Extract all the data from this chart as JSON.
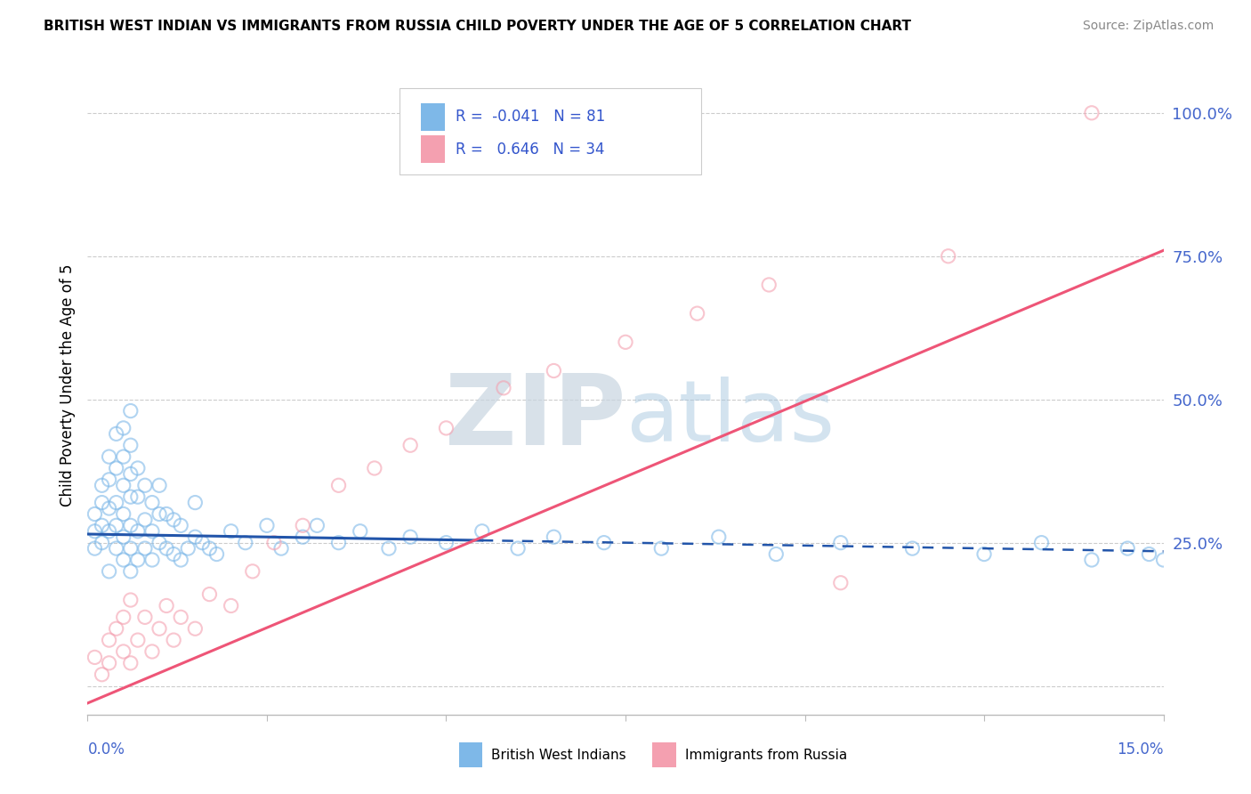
{
  "title": "BRITISH WEST INDIAN VS IMMIGRANTS FROM RUSSIA CHILD POVERTY UNDER THE AGE OF 5 CORRELATION CHART",
  "source": "Source: ZipAtlas.com",
  "ylabel": "Child Poverty Under the Age of 5",
  "x_lim": [
    0.0,
    0.15
  ],
  "y_lim": [
    -0.05,
    1.1
  ],
  "blue_R": -0.041,
  "blue_N": 81,
  "pink_R": 0.646,
  "pink_N": 34,
  "blue_color": "#7EB8E8",
  "pink_color": "#F4A0B0",
  "blue_trend_color": "#2255AA",
  "pink_trend_color": "#EE5577",
  "watermark_color": "#C8D8E8",
  "legend_label_blue": "British West Indians",
  "legend_label_pink": "Immigrants from Russia",
  "blue_x": [
    0.001,
    0.001,
    0.001,
    0.002,
    0.002,
    0.002,
    0.002,
    0.003,
    0.003,
    0.003,
    0.003,
    0.003,
    0.004,
    0.004,
    0.004,
    0.004,
    0.004,
    0.005,
    0.005,
    0.005,
    0.005,
    0.005,
    0.005,
    0.006,
    0.006,
    0.006,
    0.006,
    0.006,
    0.006,
    0.006,
    0.007,
    0.007,
    0.007,
    0.007,
    0.008,
    0.008,
    0.008,
    0.009,
    0.009,
    0.009,
    0.01,
    0.01,
    0.01,
    0.011,
    0.011,
    0.012,
    0.012,
    0.013,
    0.013,
    0.014,
    0.015,
    0.015,
    0.016,
    0.017,
    0.018,
    0.02,
    0.022,
    0.025,
    0.027,
    0.03,
    0.032,
    0.035,
    0.038,
    0.042,
    0.045,
    0.05,
    0.055,
    0.06,
    0.065,
    0.072,
    0.08,
    0.088,
    0.096,
    0.105,
    0.115,
    0.125,
    0.133,
    0.14,
    0.145,
    0.148,
    0.15
  ],
  "blue_y": [
    0.24,
    0.27,
    0.3,
    0.25,
    0.28,
    0.32,
    0.35,
    0.2,
    0.27,
    0.31,
    0.36,
    0.4,
    0.24,
    0.28,
    0.32,
    0.38,
    0.44,
    0.22,
    0.26,
    0.3,
    0.35,
    0.4,
    0.45,
    0.2,
    0.24,
    0.28,
    0.33,
    0.37,
    0.42,
    0.48,
    0.22,
    0.27,
    0.33,
    0.38,
    0.24,
    0.29,
    0.35,
    0.22,
    0.27,
    0.32,
    0.25,
    0.3,
    0.35,
    0.24,
    0.3,
    0.23,
    0.29,
    0.22,
    0.28,
    0.24,
    0.26,
    0.32,
    0.25,
    0.24,
    0.23,
    0.27,
    0.25,
    0.28,
    0.24,
    0.26,
    0.28,
    0.25,
    0.27,
    0.24,
    0.26,
    0.25,
    0.27,
    0.24,
    0.26,
    0.25,
    0.24,
    0.26,
    0.23,
    0.25,
    0.24,
    0.23,
    0.25,
    0.22,
    0.24,
    0.23,
    0.22
  ],
  "pink_x": [
    0.001,
    0.002,
    0.003,
    0.003,
    0.004,
    0.005,
    0.005,
    0.006,
    0.006,
    0.007,
    0.008,
    0.009,
    0.01,
    0.011,
    0.012,
    0.013,
    0.015,
    0.017,
    0.02,
    0.023,
    0.026,
    0.03,
    0.035,
    0.04,
    0.045,
    0.05,
    0.058,
    0.065,
    0.075,
    0.085,
    0.095,
    0.105,
    0.12,
    0.14
  ],
  "pink_y": [
    0.05,
    0.02,
    0.08,
    0.04,
    0.1,
    0.06,
    0.12,
    0.04,
    0.15,
    0.08,
    0.12,
    0.06,
    0.1,
    0.14,
    0.08,
    0.12,
    0.1,
    0.16,
    0.14,
    0.2,
    0.25,
    0.28,
    0.35,
    0.38,
    0.42,
    0.45,
    0.52,
    0.55,
    0.6,
    0.65,
    0.7,
    0.18,
    0.75,
    1.0
  ]
}
